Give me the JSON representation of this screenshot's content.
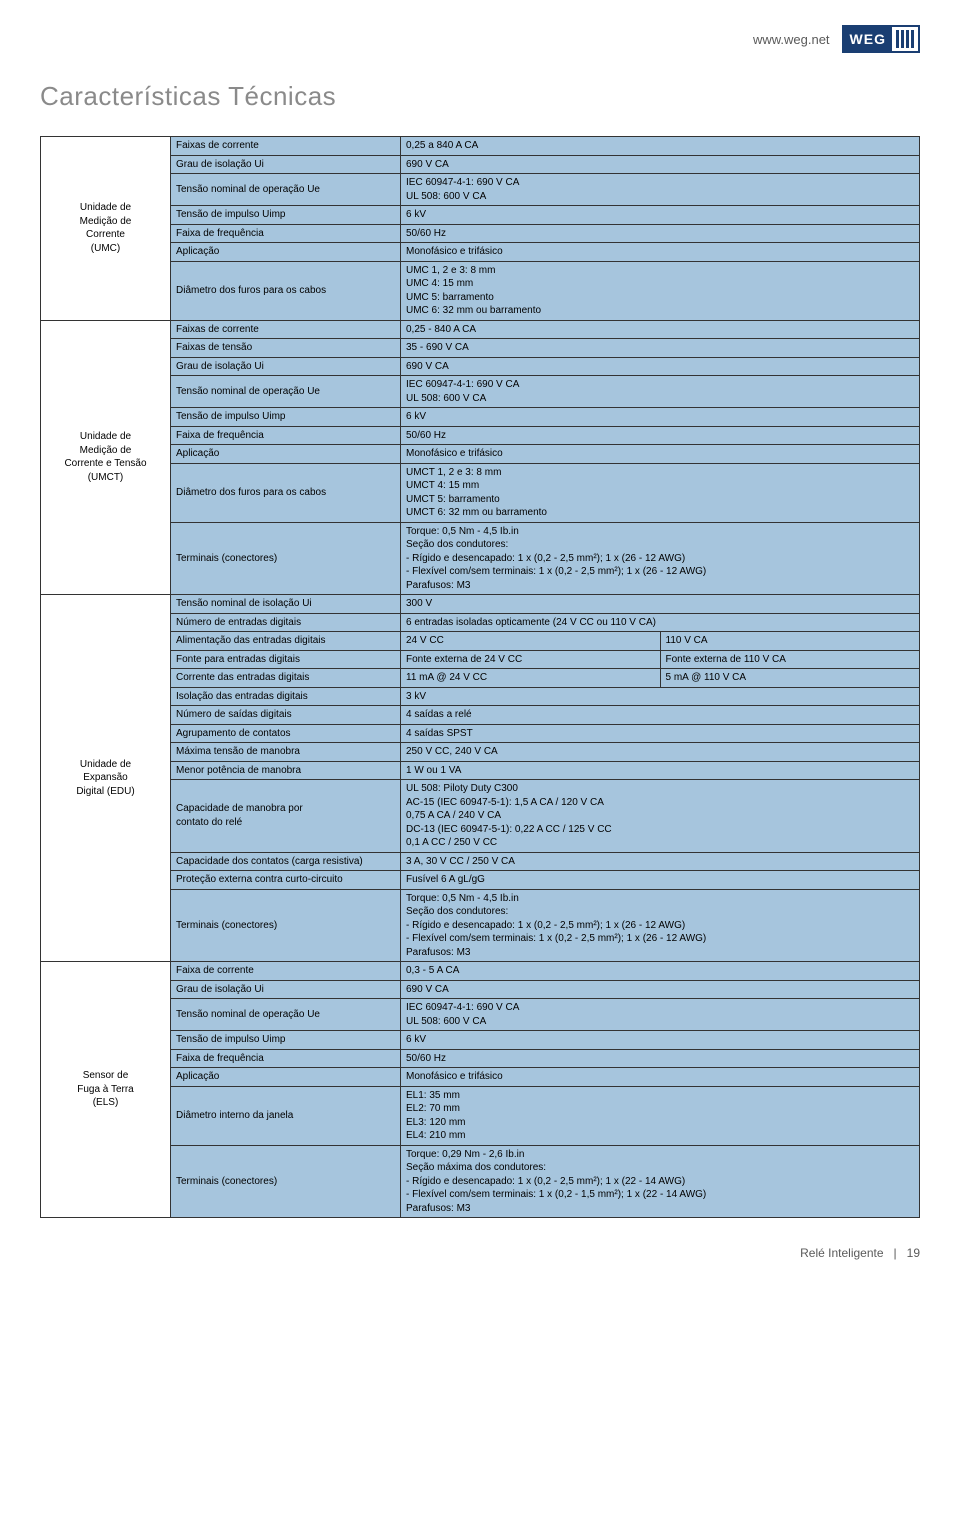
{
  "header": {
    "url": "www.weg.net",
    "logo_text": "WEG"
  },
  "page_title": "Características Técnicas",
  "colors": {
    "cell_bg": "#a6c5dd",
    "border": "#333333",
    "title_color": "#8a8a8a",
    "logo_color": "#1a3e72"
  },
  "sections": [
    {
      "category": "Unidade de\nMedição de\nCorrente\n(UMC)",
      "rows": [
        {
          "label": "Faixas de corrente",
          "vals": [
            "0,25 a 840 A CA"
          ]
        },
        {
          "label": "Grau de isolação Ui",
          "vals": [
            "690 V CA"
          ]
        },
        {
          "label": "Tensão nominal de operação Ue",
          "vals": [
            "IEC 60947-4-1: 690 V CA\nUL 508: 600 V CA"
          ]
        },
        {
          "label": "Tensão de impulso Uimp",
          "vals": [
            "6 kV"
          ]
        },
        {
          "label": "Faixa de frequência",
          "vals": [
            "50/60 Hz"
          ]
        },
        {
          "label": "Aplicação",
          "vals": [
            "Monofásico e trifásico"
          ]
        },
        {
          "label": "Diâmetro dos furos para os cabos",
          "vals": [
            "UMC 1, 2 e 3: 8 mm\nUMC 4: 15 mm\nUMC 5: barramento\nUMC 6: 32 mm ou barramento"
          ]
        }
      ]
    },
    {
      "category": "Unidade de\nMedição de\nCorrente e Tensão (UMCT)",
      "rows": [
        {
          "label": "Faixas de corrente",
          "vals": [
            "0,25 - 840 A CA"
          ]
        },
        {
          "label": "Faixas de tensão",
          "vals": [
            "35 - 690 V CA"
          ]
        },
        {
          "label": "Grau de isolação Ui",
          "vals": [
            "690 V CA"
          ]
        },
        {
          "label": "Tensão nominal de operação Ue",
          "vals": [
            "IEC 60947-4-1: 690 V CA\nUL 508: 600 V CA"
          ]
        },
        {
          "label": "Tensão de impulso Uimp",
          "vals": [
            "6 kV"
          ]
        },
        {
          "label": "Faixa de frequência",
          "vals": [
            "50/60 Hz"
          ]
        },
        {
          "label": "Aplicação",
          "vals": [
            "Monofásico e trifásico"
          ]
        },
        {
          "label": "Diâmetro dos furos para os cabos",
          "vals": [
            "UMCT 1, 2 e 3: 8 mm\nUMCT 4: 15 mm\nUMCT 5: barramento\nUMCT 6: 32 mm ou barramento"
          ]
        },
        {
          "label": "Terminais (conectores)",
          "vals": [
            "Torque: 0,5 Nm - 4,5 Ib.in\nSeção dos condutores:\n - Rígido e desencapado: 1 x (0,2 - 2,5 mm²); 1 x (26 - 12 AWG)\n - Flexível com/sem terminais: 1 x (0,2 - 2,5 mm²); 1 x (26 - 12 AWG)\nParafusos: M3"
          ]
        }
      ]
    },
    {
      "category": "Unidade de\nExpansão\nDigital (EDU)",
      "rows": [
        {
          "label": "Tensão nominal de isolação Ui",
          "vals": [
            "300 V"
          ]
        },
        {
          "label": "Número de entradas digitais",
          "vals": [
            "6 entradas isoladas opticamente (24 V CC ou 110 V CA)"
          ]
        },
        {
          "label": "Alimentação das entradas digitais",
          "vals": [
            "24 V CC",
            "110 V CA"
          ]
        },
        {
          "label": "Fonte para entradas digitais",
          "vals": [
            "Fonte externa de 24 V CC",
            "Fonte externa de 110 V CA"
          ]
        },
        {
          "label": "Corrente das entradas digitais",
          "vals": [
            "11 mA @ 24 V CC",
            "5 mA @ 110 V CA"
          ]
        },
        {
          "label": "Isolação das entradas digitais",
          "vals": [
            "3 kV"
          ]
        },
        {
          "label": "Número de saídas digitais",
          "vals": [
            "4 saídas a relé"
          ]
        },
        {
          "label": "Agrupamento de contatos",
          "vals": [
            "4 saídas SPST"
          ]
        },
        {
          "label": "Máxima tensão de manobra",
          "vals": [
            "250 V CC, 240 V CA"
          ]
        },
        {
          "label": "Menor potência de manobra",
          "vals": [
            "1 W ou 1 VA"
          ]
        },
        {
          "label": "Capacidade de manobra por\ncontato do relé",
          "vals": [
            "UL 508: Piloty Duty C300\nAC-15 (IEC 60947-5-1): 1,5 A CA / 120 V CA\n                                     0,75 A CA / 240 V CA\nDC-13 (IEC 60947-5-1): 0,22 A CC / 125 V CC\n                                     0,1 A CC / 250 V CC"
          ]
        },
        {
          "label": "Capacidade dos contatos (carga resistiva)",
          "vals": [
            "3 A, 30 V CC / 250 V CA"
          ]
        },
        {
          "label": "Proteção externa contra curto-circuito",
          "vals": [
            "Fusível 6 A gL/gG"
          ]
        },
        {
          "label": "Terminais (conectores)",
          "vals": [
            "Torque: 0,5 Nm - 4,5 Ib.in\nSeção dos condutores:\n - Rígido e desencapado: 1 x (0,2 - 2,5 mm²); 1 x (26 - 12 AWG)\n - Flexível com/sem terminais: 1 x (0,2 - 2,5 mm²); 1 x (26 - 12 AWG)\nParafusos: M3"
          ]
        }
      ]
    },
    {
      "category": "Sensor de\nFuga à Terra\n(ELS)",
      "rows": [
        {
          "label": "Faixa de corrente",
          "vals": [
            "0,3 - 5 A CA"
          ]
        },
        {
          "label": "Grau de isolação Ui",
          "vals": [
            "690 V CA"
          ]
        },
        {
          "label": "Tensão nominal de operação Ue",
          "vals": [
            "IEC 60947-4-1: 690 V CA\nUL 508: 600 V CA"
          ]
        },
        {
          "label": "Tensão de impulso Uimp",
          "vals": [
            "6 kV"
          ]
        },
        {
          "label": "Faixa de frequência",
          "vals": [
            "50/60 Hz"
          ]
        },
        {
          "label": "Aplicação",
          "vals": [
            "Monofásico e trifásico"
          ]
        },
        {
          "label": "Diâmetro interno da janela",
          "vals": [
            "EL1: 35 mm\nEL2: 70 mm\nEL3: 120 mm\nEL4: 210 mm"
          ]
        },
        {
          "label": "Terminais (conectores)",
          "vals": [
            "Torque: 0,29 Nm - 2,6 Ib.in\nSeção máxima dos condutores:\n - Rígido e desencapado: 1 x (0,2 - 2,5 mm²); 1 x (22 - 14 AWG)\n - Flexível com/sem terminais: 1 x (0,2 - 1,5 mm²); 1 x (22 - 14 AWG)\nParafusos: M3"
          ]
        }
      ]
    }
  ],
  "footer": {
    "doc_name": "Relé Inteligente",
    "page_num": "19"
  }
}
